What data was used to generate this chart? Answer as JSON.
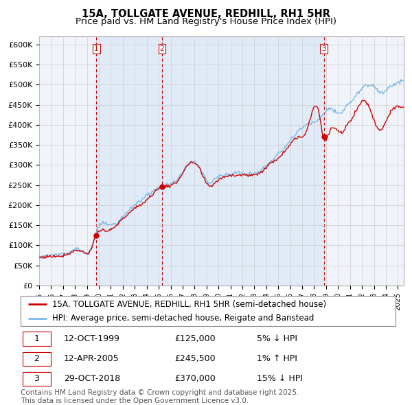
{
  "title": "15A, TOLLGATE AVENUE, REDHILL, RH1 5HR",
  "subtitle": "Price paid vs. HM Land Registry's House Price Index (HPI)",
  "ylim": [
    0,
    620000
  ],
  "ytick_labels": [
    "£0",
    "£50K",
    "£100K",
    "£150K",
    "£200K",
    "£250K",
    "£300K",
    "£350K",
    "£400K",
    "£450K",
    "£500K",
    "£550K",
    "£600K"
  ],
  "ytick_values": [
    0,
    50000,
    100000,
    150000,
    200000,
    250000,
    300000,
    350000,
    400000,
    450000,
    500000,
    550000,
    600000
  ],
  "sale_dates": [
    "1999-10-12",
    "2005-04-12",
    "2018-10-29"
  ],
  "sale_prices": [
    125000,
    245500,
    370000
  ],
  "sale_labels": [
    "1",
    "2",
    "3"
  ],
  "legend_entries": [
    "15A, TOLLGATE AVENUE, REDHILL, RH1 5HR (semi-detached house)",
    "HPI: Average price, semi-detached house, Reigate and Banstead"
  ],
  "hpi_line_color": "#7ab8e8",
  "hpi_fill_color": "#d6eaf8",
  "price_line_color": "#cc0000",
  "sale_marker_color": "#cc0000",
  "grid_color": "#cccccc",
  "background_color": "#ffffff",
  "plot_bg_color": "#f0f4fa",
  "table_rows": [
    {
      "num": "1",
      "date": "12-OCT-1999",
      "price": "£125,000",
      "hpi": "5% ↓ HPI"
    },
    {
      "num": "2",
      "date": "12-APR-2005",
      "price": "£245,500",
      "hpi": "1% ↑ HPI"
    },
    {
      "num": "3",
      "date": "29-OCT-2018",
      "price": "£370,000",
      "hpi": "15% ↓ HPI"
    }
  ],
  "footer": "Contains HM Land Registry data © Crown copyright and database right 2025.\nThis data is licensed under the Open Government Licence v3.0.",
  "title_fontsize": 10.5,
  "subtitle_fontsize": 9.5,
  "tick_fontsize": 8,
  "legend_fontsize": 8.5,
  "table_fontsize": 9,
  "footer_fontsize": 7.5,
  "xstart_year": 1995,
  "xend_year": 2025
}
